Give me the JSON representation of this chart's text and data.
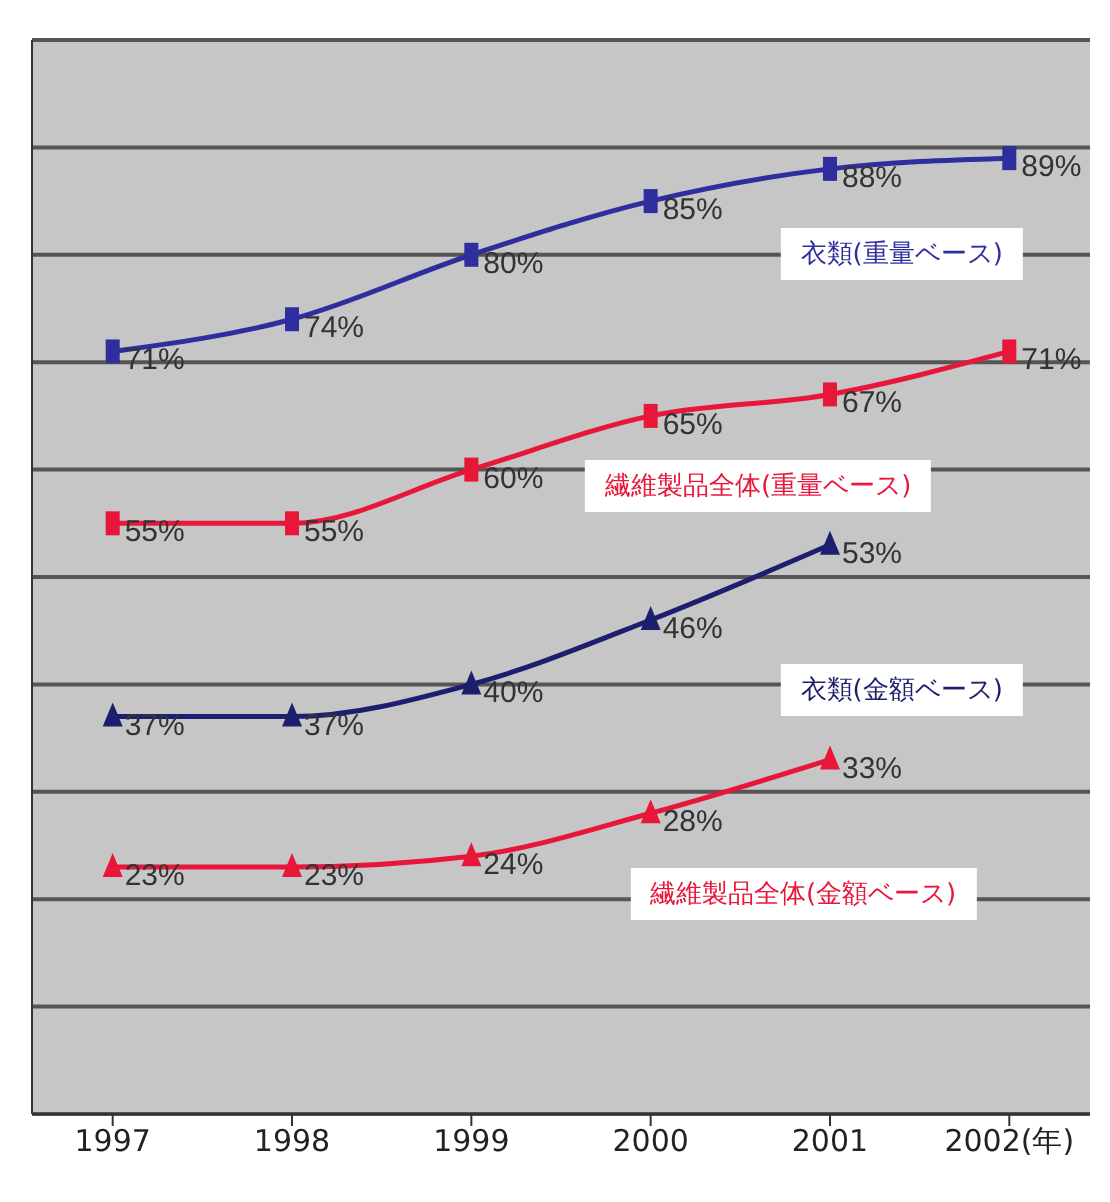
{
  "chart_data": {
    "type": "line",
    "categories": [
      "1997",
      "1998",
      "1999",
      "2000",
      "2001",
      "2002(年)"
    ],
    "series": [
      {
        "name": "衣類(重量ベース)",
        "color": "#2e2e9e",
        "marker": "square",
        "values": [
          71,
          74,
          80,
          85,
          88,
          89
        ],
        "value_labels": [
          "71%",
          "74%",
          "80%",
          "85%",
          "88%",
          "89%"
        ]
      },
      {
        "name": "繊維製品全体(重量ベース)",
        "color": "#e8173a",
        "marker": "square",
        "values": [
          55,
          55,
          60,
          65,
          67,
          71
        ],
        "value_labels": [
          "55%",
          "55%",
          "60%",
          "65%",
          "67%",
          "71%"
        ]
      },
      {
        "name": "衣類(金額ベース)",
        "color": "#1e1e6e",
        "marker": "triangle",
        "values": [
          37,
          37,
          40,
          46,
          53,
          null
        ],
        "value_labels": [
          "37%",
          "37%",
          "40%",
          "46%",
          "53%",
          null
        ]
      },
      {
        "name": "繊維製品全体(金額ベース)",
        "color": "#e8173a",
        "marker": "triangle",
        "values": [
          23,
          23,
          24,
          28,
          33,
          null
        ],
        "value_labels": [
          "23%",
          "23%",
          "24%",
          "28%",
          "33%",
          null
        ]
      }
    ],
    "ylim": [
      0,
      100
    ],
    "grid": "y",
    "tick_labels": "x"
  }
}
